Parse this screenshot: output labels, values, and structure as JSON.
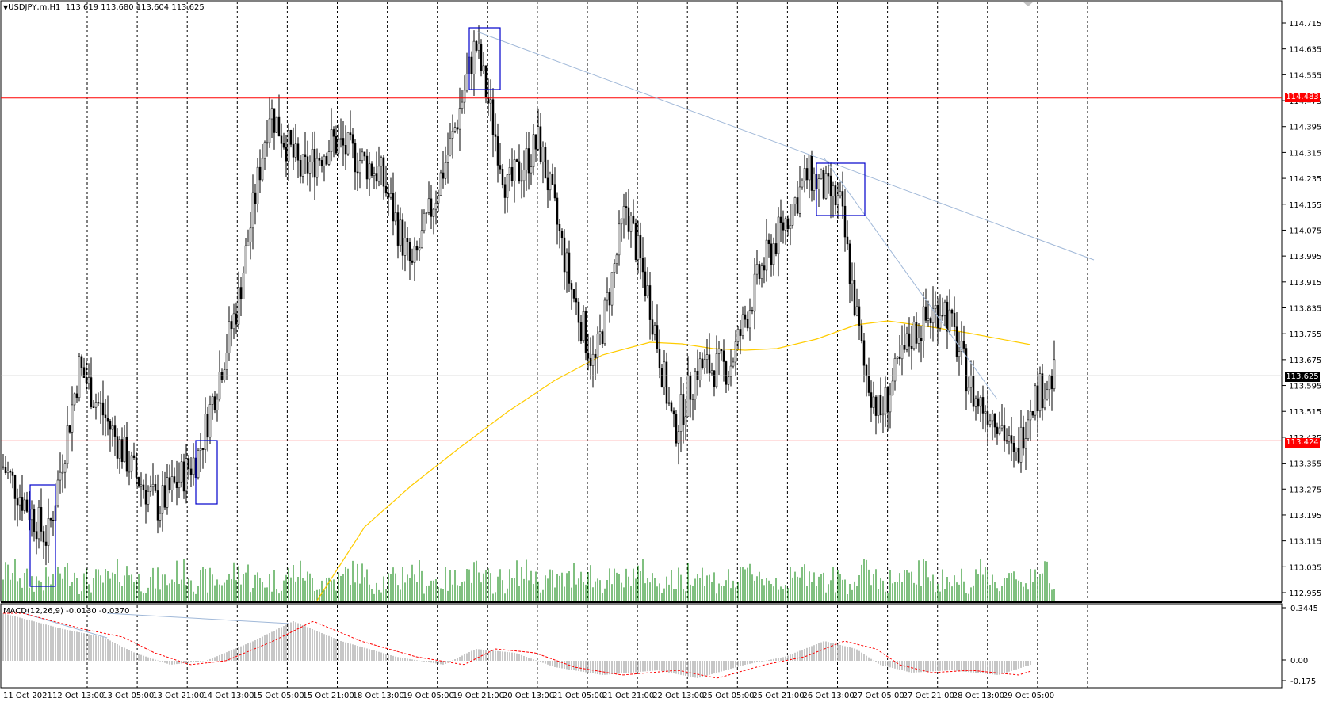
{
  "header": {
    "symbol_label": "USDJPY,m,H1",
    "ohlc_label": "113.619 113.680 113.604 113.625"
  },
  "macd": {
    "label": "MACD(12,26,9) -0.0130 -0.0370",
    "axis_labels": [
      "0.3445",
      "0.00",
      "-0.175"
    ]
  },
  "price_axis": {
    "labels": [
      "114.715",
      "114.635",
      "114.555",
      "114.475",
      "114.395",
      "114.315",
      "114.235",
      "114.155",
      "114.075",
      "113.995",
      "113.915",
      "113.835",
      "113.755",
      "113.675",
      "113.595",
      "113.515",
      "113.435",
      "113.355",
      "113.275",
      "113.195",
      "113.115",
      "113.035",
      "112.955"
    ]
  },
  "time_axis": {
    "labels": [
      "11 Oct 2021",
      "12 Oct 13:00",
      "13 Oct 05:00",
      "13 Oct 21:00",
      "14 Oct 13:00",
      "15 Oct 05:00",
      "15 Oct 21:00",
      "18 Oct 13:00",
      "19 Oct 05:00",
      "19 Oct 21:00",
      "20 Oct 13:00",
      "21 Oct 05:00",
      "21 Oct 21:00",
      "22 Oct 13:00",
      "25 Oct 05:00",
      "25 Oct 21:00",
      "26 Oct 13:00",
      "27 Oct 05:00",
      "27 Oct 21:00",
      "28 Oct 13:00",
      "29 Oct 05:00"
    ]
  },
  "levels": {
    "resistance": "114.483",
    "support": "113.424",
    "current": "113.625"
  },
  "colors": {
    "level_line": "#ff0000",
    "volume": "#008000",
    "ma": "#ffcc00",
    "trend": "#a0b8d8",
    "box": "#0000cc",
    "macd_hist": "#b4b4b4",
    "macd_signal": "#ff0000"
  },
  "chart_data": {
    "type": "candlestick",
    "symbol": "USDJPY,m",
    "timeframe": "H1",
    "ylim": [
      112.955,
      114.715
    ],
    "horizontal_levels": [
      114.483,
      113.424
    ],
    "current_price": 113.625
  }
}
